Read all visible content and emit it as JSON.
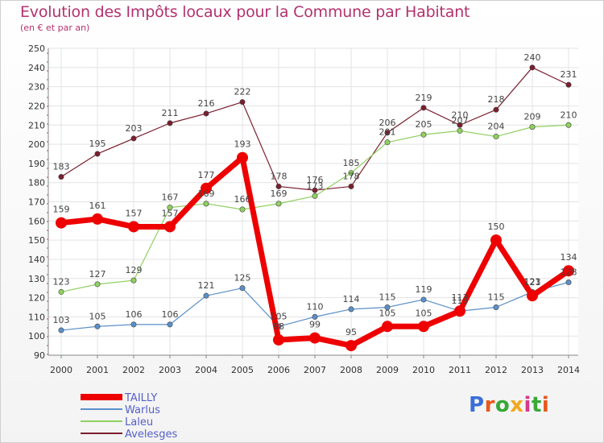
{
  "title": "Evolution des Impôts locaux pour la Commune par Habitant",
  "subtitle": "(en € et par an)",
  "logo": {
    "text": "Proxiti",
    "letter_colors": [
      "#3a6fd8",
      "#e8571d",
      "#39a838",
      "#f0a81c",
      "#d63a8a",
      "#39a838",
      "#e8571d"
    ]
  },
  "chart_data": {
    "type": "line",
    "categories": [
      "2000",
      "2001",
      "2002",
      "2003",
      "2004",
      "2005",
      "2006",
      "2007",
      "2008",
      "2009",
      "2010",
      "2011",
      "2012",
      "2013",
      "2014"
    ],
    "ylim": [
      90,
      250
    ],
    "yticks": [
      90,
      100,
      110,
      120,
      130,
      140,
      150,
      160,
      170,
      180,
      190,
      200,
      210,
      220,
      230,
      240,
      250
    ],
    "grid": true,
    "legend_position": "bottom-left",
    "series": [
      {
        "name": "TAILLY",
        "color": "#ee0000",
        "emphasis": true,
        "values": [
          159,
          161,
          157,
          157,
          177,
          193,
          98,
          99,
          95,
          105,
          105,
          113,
          150,
          121,
          134
        ],
        "labels": [
          "159",
          "161",
          "157",
          "157",
          "177",
          "193",
          "98",
          "99",
          "95",
          "105",
          "105",
          "113",
          "150",
          "121",
          "134"
        ]
      },
      {
        "name": "Warlus",
        "color": "#5b8fc9",
        "values": [
          103,
          105,
          106,
          106,
          121,
          125,
          105,
          110,
          114,
          115,
          119,
          113,
          115,
          123,
          128
        ],
        "labels": [
          "103",
          "105",
          "106",
          "106",
          "121",
          "125",
          "105",
          "110",
          "114",
          "115",
          "119",
          "113",
          "115",
          "123",
          "128"
        ]
      },
      {
        "name": "Laleu",
        "color": "#90d060",
        "values": [
          123,
          127,
          129,
          167,
          169,
          166,
          169,
          173,
          185,
          201,
          205,
          207,
          204,
          209,
          210
        ],
        "labels": [
          "123",
          "127",
          "129",
          "167",
          "169",
          "166",
          "169",
          "173",
          "185",
          "201",
          "205",
          "207",
          "204",
          "209",
          "210"
        ]
      },
      {
        "name": "Avelesges",
        "color": "#7a1e2e",
        "values": [
          183,
          195,
          203,
          211,
          216,
          222,
          178,
          176,
          178,
          206,
          219,
          210,
          218,
          240,
          231
        ],
        "labels": [
          "183",
          "195",
          "203",
          "211",
          "216",
          "222",
          "178",
          "176",
          "178",
          "206",
          "219",
          "210",
          "218",
          "240",
          "231"
        ]
      }
    ]
  }
}
